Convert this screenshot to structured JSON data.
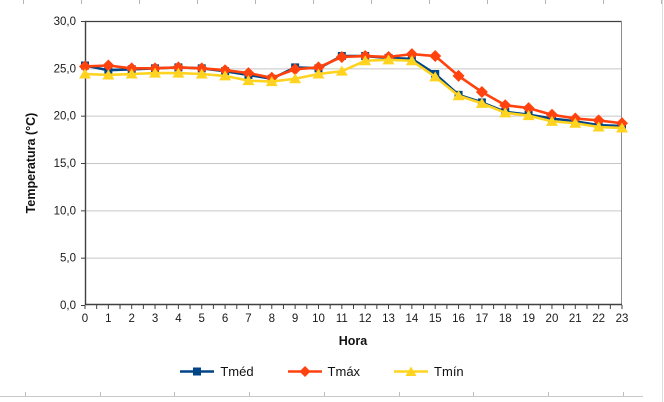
{
  "chart_data": {
    "type": "line",
    "title": "",
    "xlabel": "Hora",
    "ylabel": "Temperatura (°C)",
    "ylim": [
      0,
      30
    ],
    "grid": true,
    "legend_position": "bottom",
    "yticks": [
      0,
      5,
      10,
      15,
      20,
      25,
      30
    ],
    "ytick_labels": [
      "0,0",
      "5,0",
      "10,0",
      "15,0",
      "20,0",
      "25,0",
      "30,0"
    ],
    "x": [
      0,
      1,
      2,
      3,
      4,
      5,
      6,
      7,
      8,
      9,
      10,
      11,
      12,
      13,
      14,
      15,
      16,
      17,
      18,
      19,
      20,
      21,
      22,
      23
    ],
    "series": [
      {
        "name": "Tméd",
        "marker": "square",
        "color": "#004586",
        "values": [
          25.3,
          24.8,
          24.9,
          25.0,
          25.1,
          25.0,
          24.7,
          24.3,
          23.9,
          25.1,
          25.0,
          26.3,
          26.3,
          26.1,
          26.0,
          24.4,
          22.2,
          21.4,
          20.4,
          20.1,
          19.7,
          19.4,
          19.0,
          18.9
        ]
      },
      {
        "name": "Tmáx",
        "marker": "diamond",
        "color": "#FF420E",
        "values": [
          25.2,
          25.3,
          25.0,
          25.0,
          25.1,
          25.0,
          24.8,
          24.5,
          24.0,
          24.9,
          25.1,
          26.2,
          26.3,
          26.2,
          26.5,
          26.3,
          24.2,
          22.5,
          21.1,
          20.8,
          20.1,
          19.7,
          19.5,
          19.2
        ]
      },
      {
        "name": "Tmín",
        "marker": "triangle",
        "color": "#FFD320",
        "values": [
          24.4,
          24.3,
          24.4,
          24.5,
          24.5,
          24.4,
          24.2,
          23.7,
          23.6,
          23.9,
          24.4,
          24.7,
          25.8,
          25.9,
          25.8,
          24.1,
          22.1,
          21.3,
          20.3,
          20.0,
          19.4,
          19.2,
          18.8,
          18.7
        ]
      }
    ],
    "colors": {
      "axis": "#404040",
      "plot_border": "#8c8c8c",
      "grid": "#c6c6c6",
      "tick_text": "#1a1a1a"
    }
  }
}
